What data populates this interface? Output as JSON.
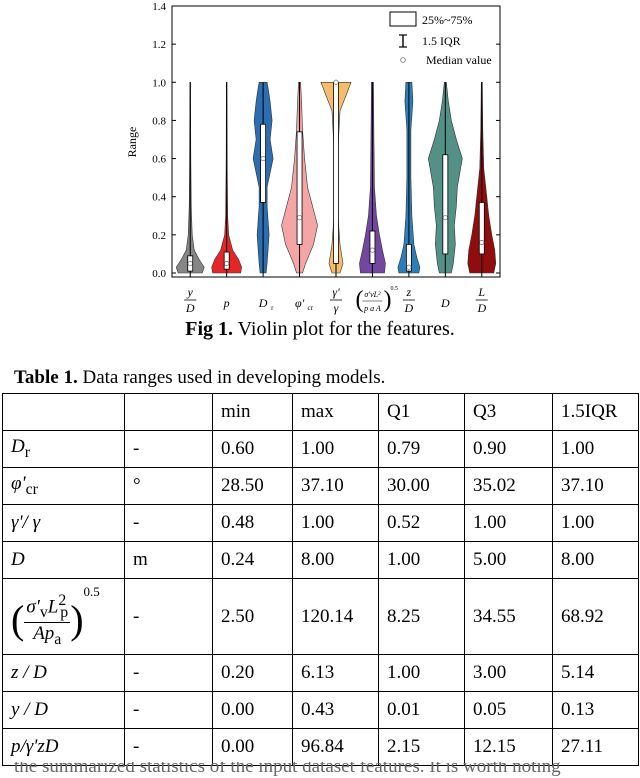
{
  "figure": {
    "caption_lead": "Fig 1.",
    "caption_text": " Violin plot for the features."
  },
  "chart_data": {
    "type": "violin",
    "ylabel": "Range",
    "ylim": [
      0,
      1.4
    ],
    "yticks": [
      "0.0",
      "0.2",
      "0.4",
      "0.6",
      "0.8",
      "1.0",
      "1.2",
      "1.4"
    ],
    "grid": false,
    "legend_position": "top-right",
    "legend": [
      {
        "symbol": "box",
        "label": "25%~75%"
      },
      {
        "symbol": "whisker",
        "label": "1.5 IQR"
      },
      {
        "symbol": "circle",
        "label": "Median value"
      }
    ],
    "series": [
      {
        "label": "y/D",
        "color": "#7f7f7f",
        "median": 0.05,
        "q1": 0.01,
        "q3": 0.09,
        "min": 0.0,
        "max": 1.0
      },
      {
        "label": "p",
        "color": "#e41a1c",
        "median": 0.05,
        "q1": 0.02,
        "q3": 0.11,
        "min": 0.0,
        "max": 1.0
      },
      {
        "label": "D_r",
        "color": "#2166ac",
        "median": 0.6,
        "q1": 0.37,
        "q3": 0.78,
        "min": 0.0,
        "max": 1.0
      },
      {
        "label": "φ'cr",
        "color": "#f4a0a0",
        "median": 0.29,
        "q1": 0.15,
        "q3": 0.74,
        "min": 0.0,
        "max": 1.0
      },
      {
        "label": "γ'/γ",
        "color": "#f5b861",
        "median": 1.0,
        "q1": 0.05,
        "q3": 1.0,
        "min": 0.0,
        "max": 1.0
      },
      {
        "label": "(σ'vLp²/(pa A))^0.5",
        "color": "#6a3d9a",
        "median": 0.12,
        "q1": 0.05,
        "q3": 0.22,
        "min": 0.0,
        "max": 1.0
      },
      {
        "label": "z/D",
        "color": "#1f78b4",
        "median": 0.03,
        "q1": 0.01,
        "q3": 0.15,
        "min": 0.0,
        "max": 1.0
      },
      {
        "label": "D",
        "color": "#4a8a80",
        "median": 0.29,
        "q1": 0.1,
        "q3": 0.62,
        "min": 0.0,
        "max": 1.0
      },
      {
        "label": "L/D",
        "color": "#8b0000",
        "median": 0.16,
        "q1": 0.1,
        "q3": 0.37,
        "min": 0.0,
        "max": 1.0
      }
    ]
  },
  "table": {
    "caption_lead": "Table 1.",
    "caption_text": " Data ranges used in developing models.",
    "columns": [
      "",
      "",
      "min",
      "max",
      "Q1",
      "Q3",
      "1.5IQR"
    ],
    "rows": [
      {
        "var": "D",
        "var_sub": "r",
        "unit": "-",
        "min": "0.60",
        "max": "1.00",
        "q1": "0.79",
        "q3": "0.90",
        "iqr": "1.00"
      },
      {
        "var": "φ'",
        "var_sub": "cr",
        "unit": "°",
        "min": "28.50",
        "max": "37.10",
        "q1": "30.00",
        "q3": "35.02",
        "iqr": "37.10"
      },
      {
        "var": "γ'/ γ",
        "var_sub": "",
        "unit": "-",
        "min": "0.48",
        "max": "1.00",
        "q1": "0.52",
        "q3": "1.00",
        "iqr": "1.00"
      },
      {
        "var": "D",
        "var_sub": "",
        "unit": "m",
        "min": "0.24",
        "max": "8.00",
        "q1": "1.00",
        "q3": "5.00",
        "iqr": "8.00"
      },
      {
        "var": "formula",
        "var_sub": "",
        "unit": "-",
        "min": "2.50",
        "max": "120.14",
        "q1": "8.25",
        "q3": "34.55",
        "iqr": "68.92"
      },
      {
        "var": "z / D",
        "var_sub": "",
        "unit": "-",
        "min": "0.20",
        "max": "6.13",
        "q1": "1.00",
        "q3": "3.00",
        "iqr": "5.14"
      },
      {
        "var": "y / D",
        "var_sub": "",
        "unit": "-",
        "min": "0.00",
        "max": "0.43",
        "q1": "0.01",
        "q3": "0.05",
        "iqr": "0.13"
      },
      {
        "var": "p/γ'zD",
        "var_sub": "",
        "unit": "-",
        "min": "0.00",
        "max": "96.84",
        "q1": "2.15",
        "q3": "12.15",
        "iqr": "27.11"
      }
    ],
    "formula": {
      "sigma": "σ′",
      "sigma_sub": "v",
      "l": "L",
      "l_sup": "2",
      "l_sub": "p",
      "den": "Ap",
      "den_sub": "a",
      "exponent": "0.5"
    }
  },
  "trailing_text": "the summarized statistics of the input dataset features. It is worth noting"
}
